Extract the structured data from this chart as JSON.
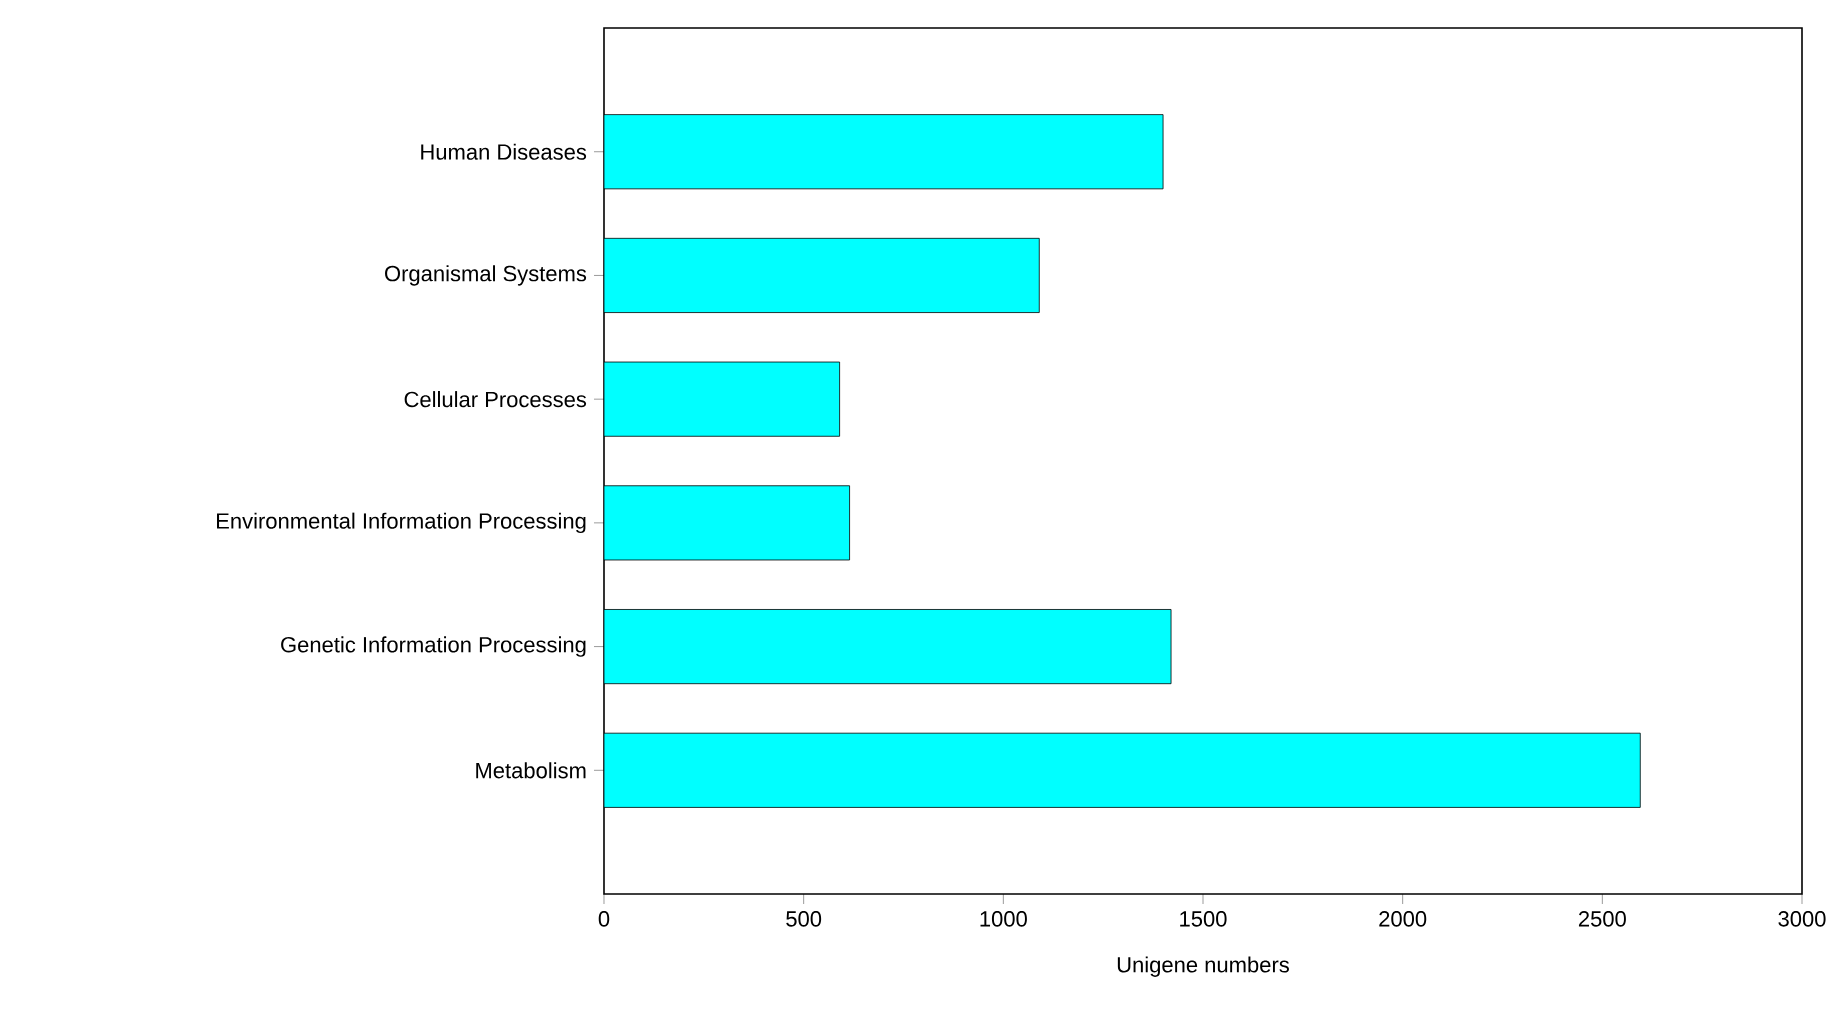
{
  "chart_data": {
    "type": "bar",
    "orientation": "horizontal",
    "xlabel": "Unigene numbers",
    "categories": [
      "Human Diseases",
      "Organismal Systems",
      "Cellular Processes",
      "Environmental Information Processing",
      "Genetic Information Processing",
      "Metabolism"
    ],
    "values": [
      1400,
      1090,
      590,
      615,
      1420,
      2595
    ],
    "color": "#00ffff",
    "xlim": [
      0,
      3000
    ],
    "xticks": [
      0,
      500,
      1000,
      1500,
      2000,
      2500,
      3000
    ]
  }
}
